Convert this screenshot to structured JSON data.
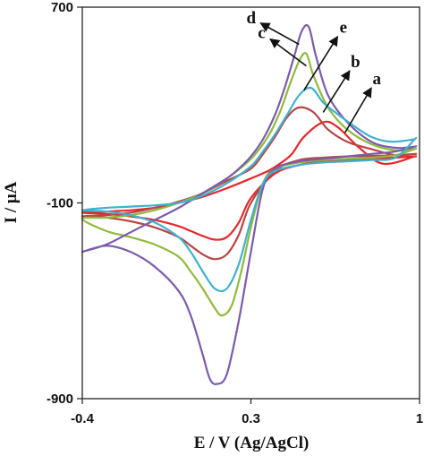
{
  "chart_data": {
    "type": "line",
    "xlabel": "E / V (Ag/AgCl)",
    "ylabel": "I / μA",
    "xlim": [
      -0.4,
      1.0
    ],
    "ylim": [
      -900,
      700
    ],
    "x_ticks": [
      "-0.4",
      "0.3",
      "1"
    ],
    "y_ticks": [
      "700",
      "-100",
      "-900"
    ],
    "grid": false,
    "legend": "none",
    "series": [
      {
        "name": "a",
        "color": "#e8262a",
        "ox": [
          0.98,
          0.85,
          0.75,
          0.66,
          0.6,
          0.52,
          0.47,
          0.42,
          0.37,
          0.3,
          0.2,
          0.1,
          0.0,
          -0.1,
          -0.2,
          -0.3,
          -0.4
        ],
        "oy": [
          90,
          60,
          125,
          210,
          230,
          170,
          100,
          60,
          30,
          0,
          -40,
          -75,
          -100,
          -120,
          -130,
          -135,
          -140
        ],
        "rx": [
          -0.4,
          -0.3,
          -0.2,
          -0.1,
          0.0,
          0.05,
          0.1,
          0.15,
          0.2,
          0.25,
          0.3,
          0.4,
          0.5,
          0.6,
          0.7,
          0.8,
          0.9,
          0.98
        ],
        "ry": [
          -140,
          -145,
          -155,
          -170,
          -195,
          -215,
          -235,
          -250,
          -240,
          -180,
          -80,
          20,
          55,
          70,
          75,
          80,
          85,
          90
        ]
      },
      {
        "name": "b",
        "color": "#b84545",
        "ox": [
          0.98,
          0.9,
          0.8,
          0.7,
          0.62,
          0.56,
          0.5,
          0.45,
          0.4,
          0.35,
          0.3,
          0.2,
          0.1,
          0.0,
          -0.1,
          -0.2,
          -0.3,
          -0.4
        ],
        "oy": [
          100,
          95,
          120,
          150,
          200,
          270,
          290,
          250,
          170,
          100,
          40,
          -10,
          -60,
          -95,
          -120,
          -140,
          -150,
          -155
        ],
        "rx": [
          -0.4,
          -0.3,
          -0.2,
          -0.1,
          0.0,
          0.05,
          0.1,
          0.15,
          0.2,
          0.25,
          0.3,
          0.4,
          0.5,
          0.6,
          0.7,
          0.8,
          0.9,
          0.98
        ],
        "ry": [
          -155,
          -160,
          -175,
          -200,
          -240,
          -275,
          -310,
          -330,
          -310,
          -230,
          -100,
          30,
          75,
          85,
          90,
          92,
          95,
          100
        ]
      },
      {
        "name": "c",
        "color": "#8fba3c",
        "ox": [
          0.98,
          0.9,
          0.8,
          0.7,
          0.62,
          0.56,
          0.53,
          0.5,
          0.46,
          0.42,
          0.37,
          0.3,
          0.2,
          0.1,
          0.0,
          -0.1,
          -0.2,
          -0.3,
          -0.4
        ],
        "oy": [
          120,
          115,
          140,
          200,
          290,
          420,
          510,
          480,
          380,
          270,
          170,
          80,
          0,
          -60,
          -100,
          -130,
          -150,
          -160,
          -165
        ],
        "rx": [
          -0.4,
          -0.3,
          -0.2,
          -0.1,
          0.0,
          0.05,
          0.1,
          0.15,
          0.18,
          0.22,
          0.26,
          0.3,
          0.35,
          0.4,
          0.5,
          0.6,
          0.7,
          0.8,
          0.9,
          0.98
        ],
        "ry": [
          -200,
          -215,
          -240,
          -270,
          -320,
          -380,
          -450,
          -530,
          -560,
          -520,
          -380,
          -200,
          -20,
          40,
          65,
          75,
          80,
          85,
          95,
          120
        ]
      },
      {
        "name": "d",
        "color": "#7c5bac",
        "ox": [
          0.98,
          0.9,
          0.8,
          0.7,
          0.62,
          0.57,
          0.54,
          0.51,
          0.48,
          0.44,
          0.4,
          0.35,
          0.3,
          0.25,
          0.2,
          0.1,
          0.0,
          -0.1,
          -0.2,
          -0.3,
          -0.4
        ],
        "oy": [
          130,
          125,
          150,
          230,
          340,
          500,
          620,
          600,
          500,
          370,
          260,
          160,
          90,
          40,
          0,
          -60,
          -120,
          -170,
          -220,
          -270,
          -300
        ],
        "rx": [
          -0.4,
          -0.3,
          -0.2,
          -0.1,
          0.0,
          0.05,
          0.1,
          0.13,
          0.16,
          0.2,
          0.25,
          0.3,
          0.35,
          0.4,
          0.5,
          0.6,
          0.7,
          0.8,
          0.9,
          0.98
        ],
        "ry": [
          -300,
          -275,
          -300,
          -360,
          -460,
          -560,
          -720,
          -820,
          -840,
          -800,
          -580,
          -300,
          -40,
          40,
          70,
          80,
          90,
          100,
          110,
          130
        ]
      },
      {
        "name": "e",
        "color": "#3fb1cf",
        "ox": [
          0.98,
          0.88,
          0.8,
          0.72,
          0.65,
          0.6,
          0.55,
          0.5,
          0.45,
          0.4,
          0.35,
          0.3,
          0.2,
          0.1,
          0.0,
          -0.1,
          -0.2,
          -0.3,
          -0.4
        ],
        "oy": [
          160,
          150,
          170,
          220,
          270,
          310,
          370,
          340,
          260,
          180,
          110,
          50,
          -20,
          -70,
          -100,
          -110,
          -115,
          -120,
          -130
        ],
        "rx": [
          -0.4,
          -0.3,
          -0.2,
          -0.1,
          0.0,
          0.05,
          0.1,
          0.15,
          0.2,
          0.25,
          0.3,
          0.35,
          0.4,
          0.5,
          0.6,
          0.7,
          0.8,
          0.9,
          0.98
        ],
        "ry": [
          -130,
          -135,
          -150,
          -180,
          -240,
          -300,
          -380,
          -450,
          -450,
          -350,
          -170,
          -20,
          30,
          55,
          65,
          70,
          75,
          85,
          160
        ]
      }
    ],
    "annotations": [
      {
        "text": "a",
        "series": "a",
        "from": [
          0.69,
          186
        ],
        "to": [
          0.8,
          370
        ]
      },
      {
        "text": "b",
        "series": "b",
        "from": [
          0.6,
          270
        ],
        "to": [
          0.71,
          440
        ]
      },
      {
        "text": "c",
        "series": "c",
        "from": [
          0.53,
          460
        ],
        "to": [
          0.38,
          570
        ]
      },
      {
        "text": "d",
        "series": "d",
        "from": [
          0.5,
          548
        ],
        "to": [
          0.34,
          635
        ]
      },
      {
        "text": "e",
        "series": "e",
        "from": [
          0.52,
          360
        ],
        "to": [
          0.66,
          580
        ]
      }
    ]
  }
}
